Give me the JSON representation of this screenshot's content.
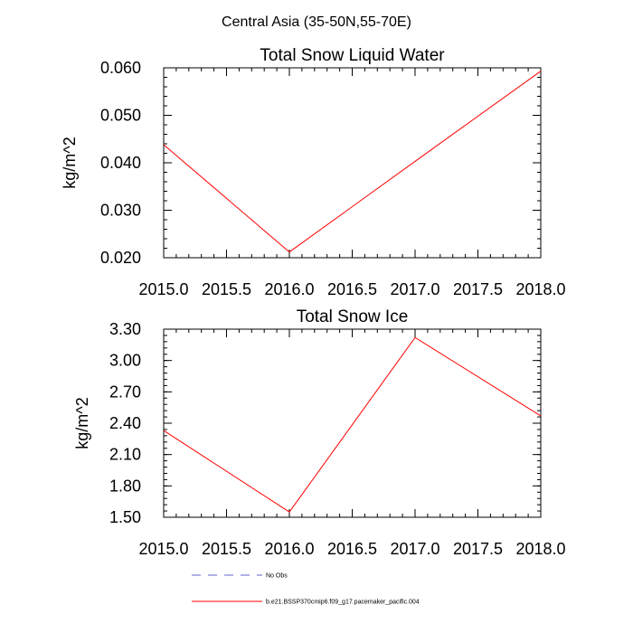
{
  "title": "Central Asia (35-50N,55-70E)",
  "chart_data": [
    {
      "type": "line",
      "title": "Total Snow Liquid Water",
      "ylabel": "kg/m^2",
      "xlim": [
        2015.0,
        2018.0
      ],
      "ylim": [
        0.02,
        0.06
      ],
      "xticks": [
        "2015.0",
        "2015.5",
        "2016.0",
        "2016.5",
        "2017.0",
        "2017.5",
        "2018.0"
      ],
      "yticks": [
        "0.020",
        "0.030",
        "0.040",
        "0.050",
        "0.060"
      ],
      "series": [
        {
          "name": "b.e21.BSSP370cmip6.f09_g17.pacemaker_pacific.004",
          "color": "#ff0000",
          "x": [
            2015,
            2016,
            2017,
            2018
          ],
          "values": [
            0.0438,
            0.0212,
            0.0403,
            0.0593
          ]
        }
      ]
    },
    {
      "type": "line",
      "title": "Total Snow Ice",
      "ylabel": "kg/m^2",
      "xlim": [
        2015.0,
        2018.0
      ],
      "ylim": [
        1.5,
        3.3
      ],
      "xticks": [
        "2015.0",
        "2015.5",
        "2016.0",
        "2016.5",
        "2017.0",
        "2017.5",
        "2018.0"
      ],
      "yticks": [
        "1.50",
        "1.80",
        "2.10",
        "2.40",
        "2.70",
        "3.00",
        "3.30"
      ],
      "series": [
        {
          "name": "b.e21.BSSP370cmip6.f09_g17.pacemaker_pacific.004",
          "color": "#ff0000",
          "x": [
            2015,
            2016,
            2017,
            2018
          ],
          "values": [
            2.33,
            1.55,
            3.22,
            2.47
          ]
        }
      ]
    }
  ],
  "legend": {
    "items": [
      {
        "label": "No Obs",
        "style": "dashed",
        "color": "#6666cc"
      },
      {
        "label": "b.e21.BSSP370cmip6.f09_g17.pacemaker_pacific.004",
        "style": "solid",
        "color": "#ff0000"
      }
    ]
  }
}
